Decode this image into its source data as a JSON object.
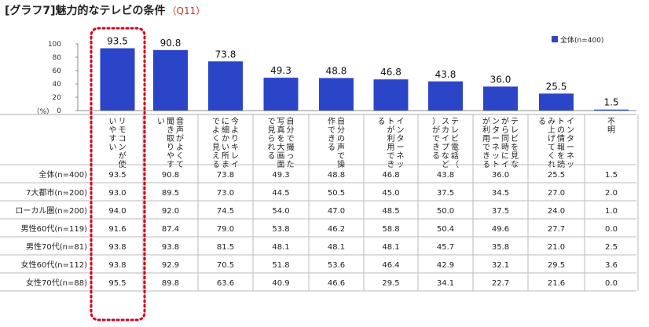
{
  "title": {
    "main": "[グラフ7]魅力的なテレビの条件",
    "qcode": "（Q11）"
  },
  "chart_data": {
    "type": "bar",
    "categories": [
      "リモコンが使いやすい",
      "音声がよくて聞き取りやすい",
      "今よりキレイに細かい所までよく見える",
      "自分で撮った写真を大画面で見られる",
      "自分の声で操作できる",
      "インターネットが利用できる",
      "テレビ電話（スカイプなど）ができる",
      "テレビを見ながら同時にインターネットが利用できる",
      "インターネットの情報を読み上げてくれる",
      "不明"
    ],
    "series": [
      {
        "name": "全体(n=400)",
        "values": [
          93.5,
          90.8,
          73.8,
          49.3,
          48.8,
          46.8,
          43.8,
          36.0,
          25.5,
          1.5
        ]
      }
    ],
    "value_labels": [
      "93.5",
      "90.8",
      "73.8",
      "49.3",
      "48.8",
      "46.8",
      "43.8",
      "36.0",
      "25.5",
      "1.5"
    ],
    "yticks": [
      "100",
      "80",
      "60",
      "40",
      "20",
      "0"
    ],
    "ylabel": "（%）",
    "ylim": [
      0,
      100
    ],
    "legend_position": "top-right",
    "bar_color": "#2b45c8",
    "highlight_color": "#d0021b",
    "table": {
      "rows": [
        {
          "label": "全体(n=400)",
          "values": [
            "93.5",
            "90.8",
            "73.8",
            "49.3",
            "48.8",
            "46.8",
            "43.8",
            "36.0",
            "25.5",
            "1.5"
          ]
        },
        {
          "label": "7大都市(n=200)",
          "values": [
            "93.0",
            "89.5",
            "73.0",
            "44.5",
            "50.5",
            "45.0",
            "37.5",
            "34.5",
            "27.0",
            "2.0"
          ]
        },
        {
          "label": "ローカル圏(n=200)",
          "values": [
            "94.0",
            "92.0",
            "74.5",
            "54.0",
            "47.0",
            "48.5",
            "50.0",
            "37.5",
            "24.0",
            "1.0"
          ]
        },
        {
          "label": "男性60代(n=119)",
          "values": [
            "91.6",
            "87.4",
            "79.0",
            "53.8",
            "46.2",
            "58.8",
            "50.4",
            "49.6",
            "27.7",
            "0.0"
          ]
        },
        {
          "label": "男性70代(n=81)",
          "values": [
            "93.8",
            "93.8",
            "81.5",
            "48.1",
            "48.1",
            "48.1",
            "45.7",
            "35.8",
            "21.0",
            "2.5"
          ]
        },
        {
          "label": "女性60代(n=112)",
          "values": [
            "93.8",
            "92.9",
            "70.5",
            "51.8",
            "53.6",
            "46.4",
            "42.9",
            "32.1",
            "29.5",
            "3.6"
          ]
        },
        {
          "label": "女性70代(n=88)",
          "values": [
            "95.5",
            "89.8",
            "63.6",
            "40.9",
            "46.6",
            "29.5",
            "34.1",
            "22.7",
            "21.6",
            "0.0"
          ]
        }
      ]
    }
  }
}
